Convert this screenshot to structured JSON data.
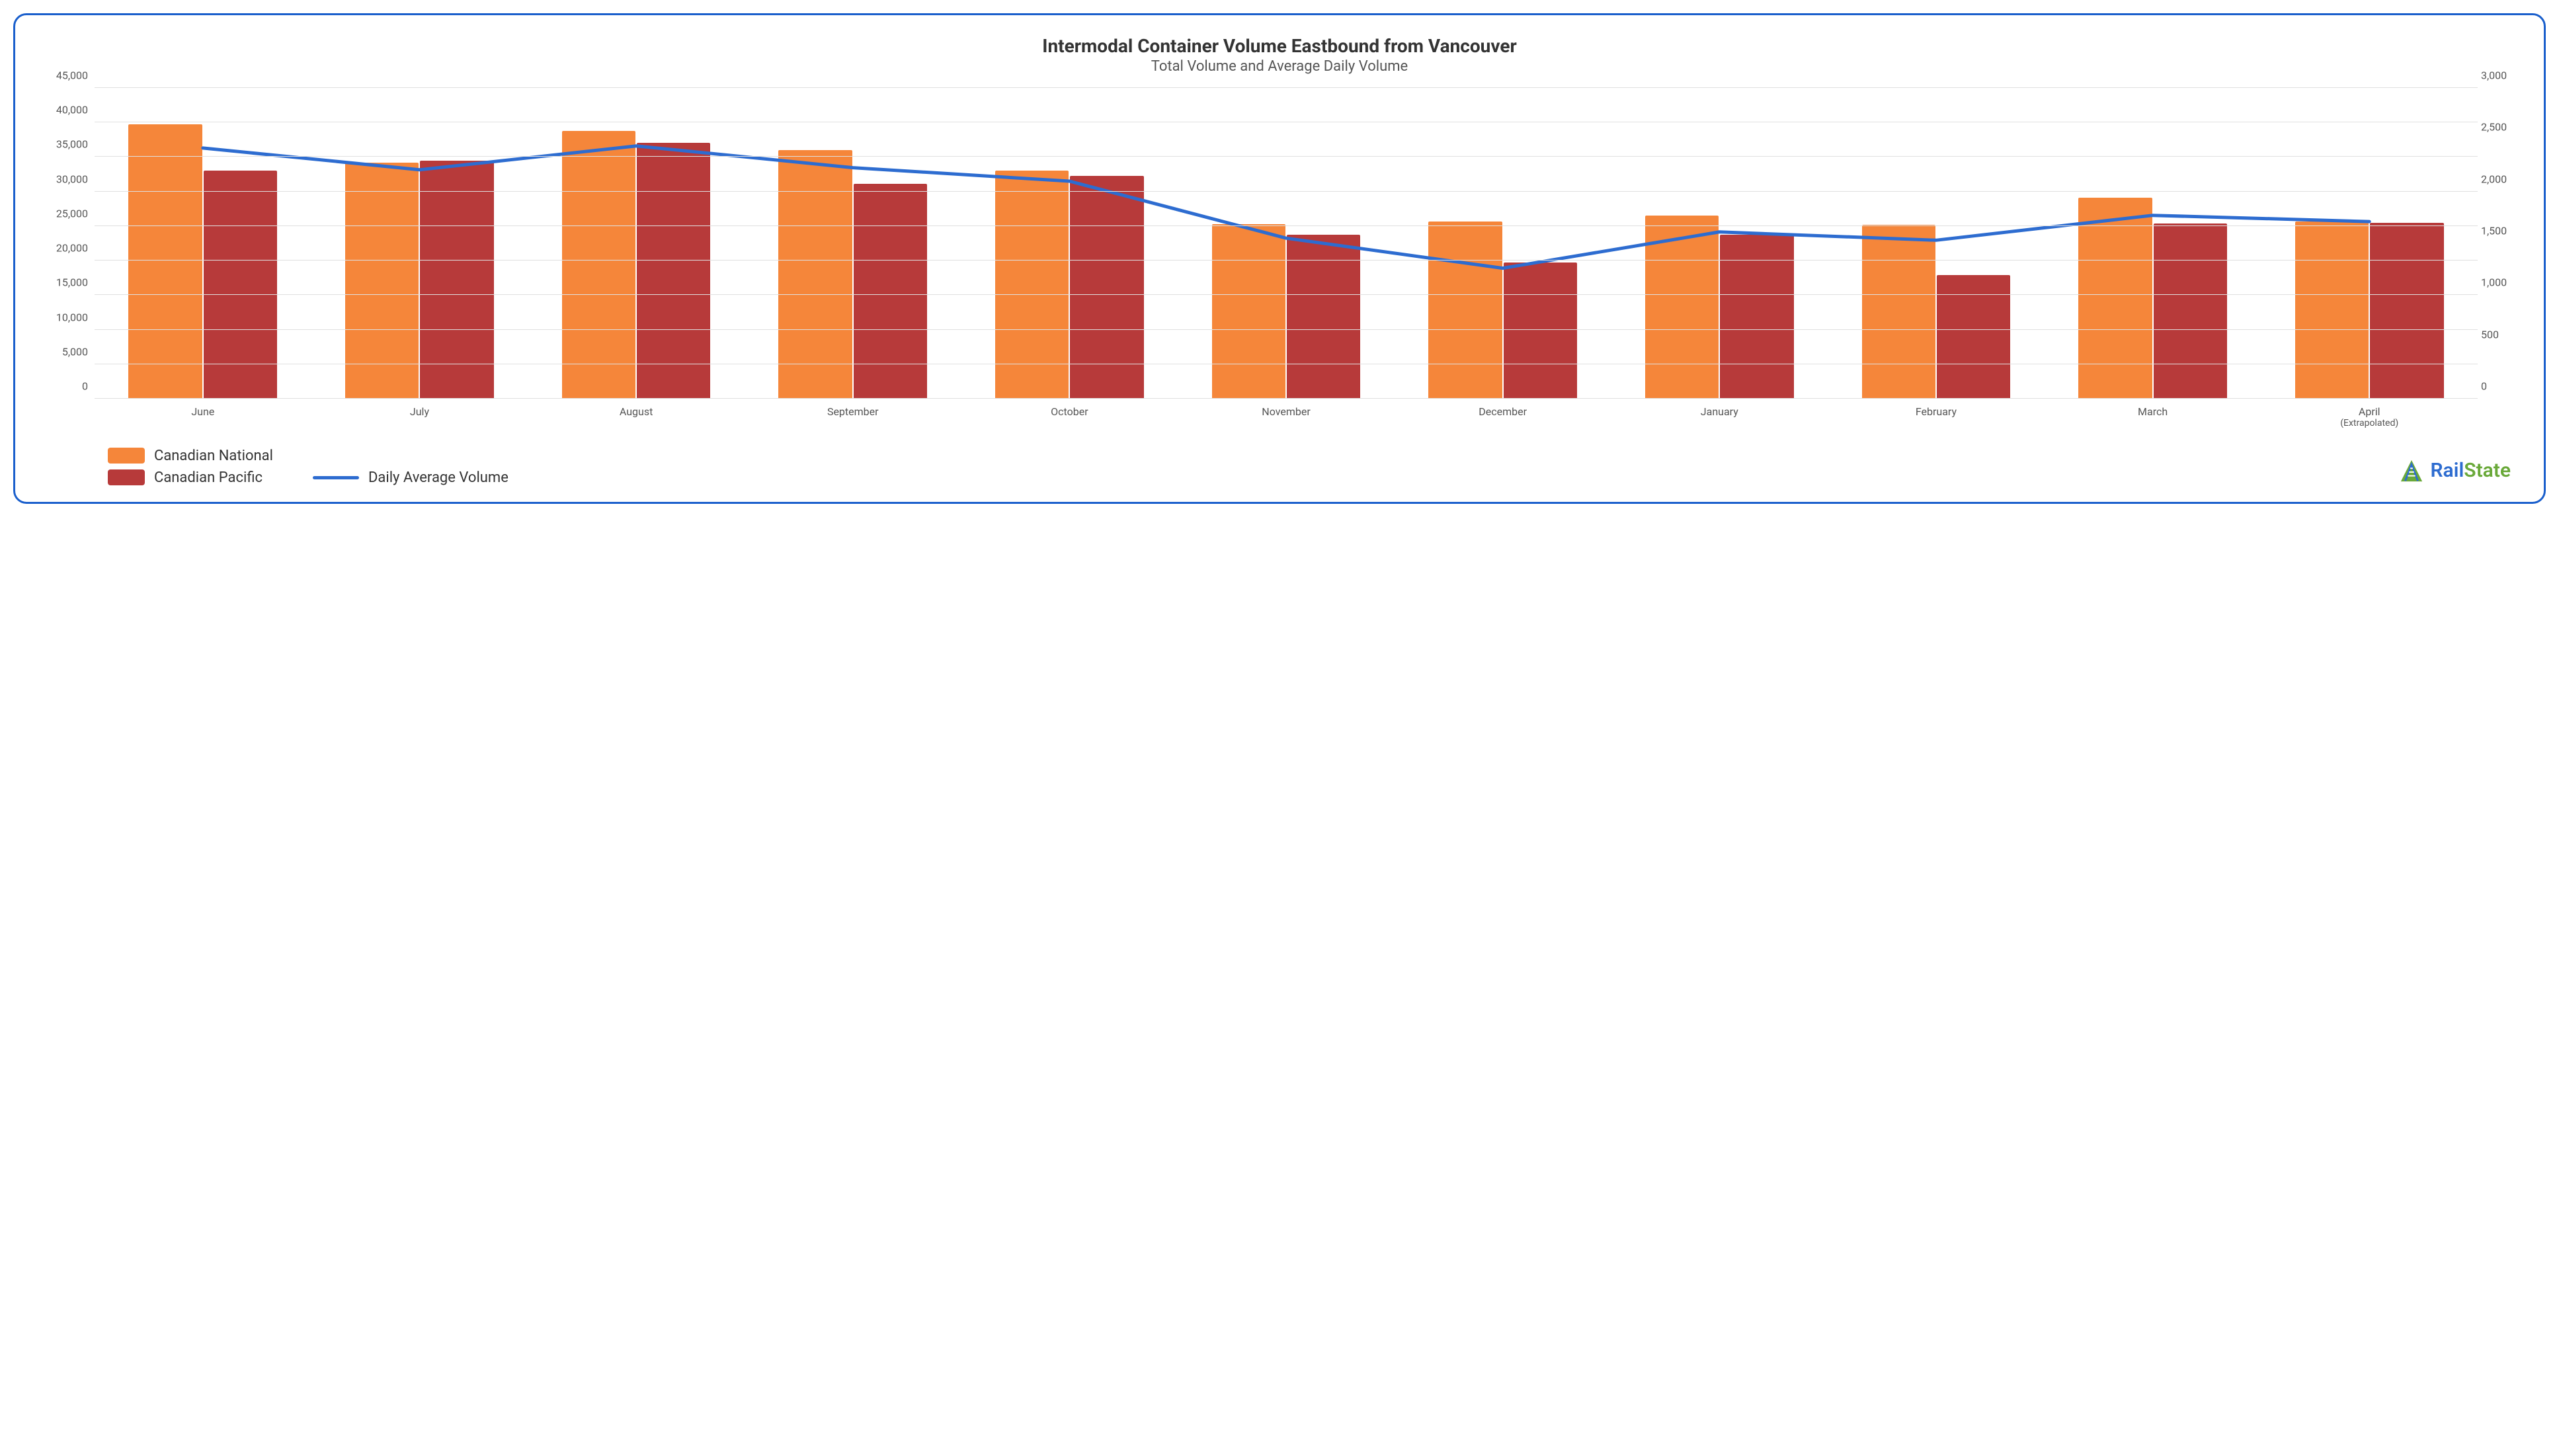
{
  "chart": {
    "type": "bar+line",
    "title": "Intermodal Container Volume Eastbound from Vancouver",
    "title_fontsize": 28,
    "title_color": "#333333",
    "subtitle": "Total Volume and Average Daily Volume",
    "subtitle_fontsize": 22,
    "subtitle_color": "#555555",
    "background_color": "#ffffff",
    "border_color": "#1a5fcc",
    "grid_color": "#e0e0e0",
    "categories": [
      "June",
      "July",
      "August",
      "September",
      "October",
      "November",
      "December",
      "January",
      "February",
      "March",
      "April"
    ],
    "category_extra": [
      "",
      "",
      "",
      "",
      "",
      "",
      "",
      "",
      "",
      "",
      "(Extrapolated)"
    ],
    "series_bars": [
      {
        "name": "Canadian National",
        "color": "#f5863a",
        "values": [
          39700,
          34200,
          38800,
          36000,
          33000,
          25300,
          25700,
          26500,
          25200,
          29100,
          25700
        ]
      },
      {
        "name": "Canadian Pacific",
        "color": "#b73a3a",
        "values": [
          33000,
          34500,
          37100,
          31100,
          32300,
          23700,
          19700,
          23700,
          17900,
          25400,
          25500
        ]
      }
    ],
    "series_line": {
      "name": "Daily Average Volume",
      "color": "#2d6cd0",
      "width": 5,
      "values": [
        2420,
        2210,
        2440,
        2230,
        2100,
        1550,
        1260,
        1610,
        1530,
        1770,
        1710
      ]
    },
    "y_left": {
      "min": 0,
      "max": 45000,
      "step": 5000,
      "labels": [
        "0",
        "5,000",
        "10,000",
        "15,000",
        "20,000",
        "25,000",
        "30,000",
        "35,000",
        "40,000",
        "45,000"
      ],
      "label_fontsize": 16,
      "label_color": "#555555"
    },
    "y_right": {
      "min": 0,
      "max": 3000,
      "step": 500,
      "labels": [
        "0",
        "500",
        "1,000",
        "1,500",
        "2,000",
        "2,500",
        "3,000"
      ],
      "label_fontsize": 16,
      "label_color": "#555555"
    },
    "bar_width_pct": 34,
    "legend": {
      "items": [
        {
          "label": "Canadian National",
          "type": "swatch",
          "color": "#f5863a"
        },
        {
          "label": "Canadian Pacific",
          "type": "swatch",
          "color": "#b73a3a"
        },
        {
          "label": "Daily Average Volume",
          "type": "line",
          "color": "#2d6cd0"
        }
      ],
      "fontsize": 22
    },
    "logo": {
      "text_rail": "Rail",
      "text_state": "State",
      "rail_color": "#2d6cd0",
      "state_color": "#6aa93a",
      "icon_stroke": "#2d6cd0",
      "icon_fill": "#6aa93a"
    }
  }
}
